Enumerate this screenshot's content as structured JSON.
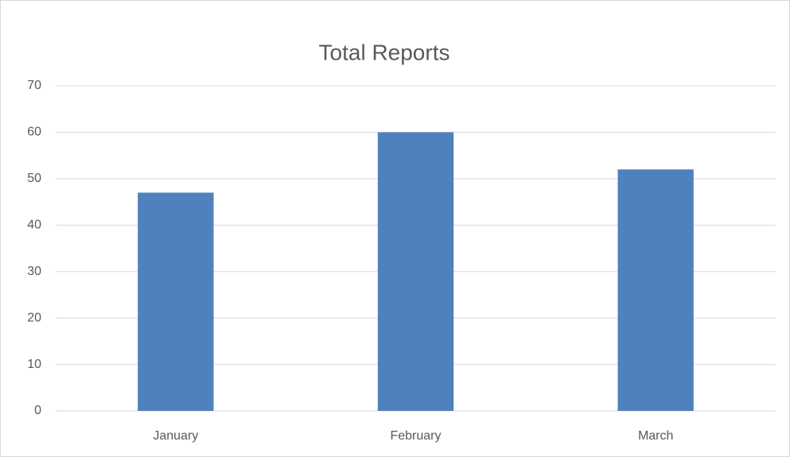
{
  "chart_data": {
    "type": "bar",
    "title": "Total Reports",
    "categories": [
      "January",
      "February",
      "March"
    ],
    "values": [
      47,
      60,
      52
    ],
    "color": "#4f81bd",
    "ylim": [
      0,
      70
    ],
    "yticks": [
      0,
      10,
      20,
      30,
      40,
      50,
      60,
      70
    ],
    "grid": true
  }
}
